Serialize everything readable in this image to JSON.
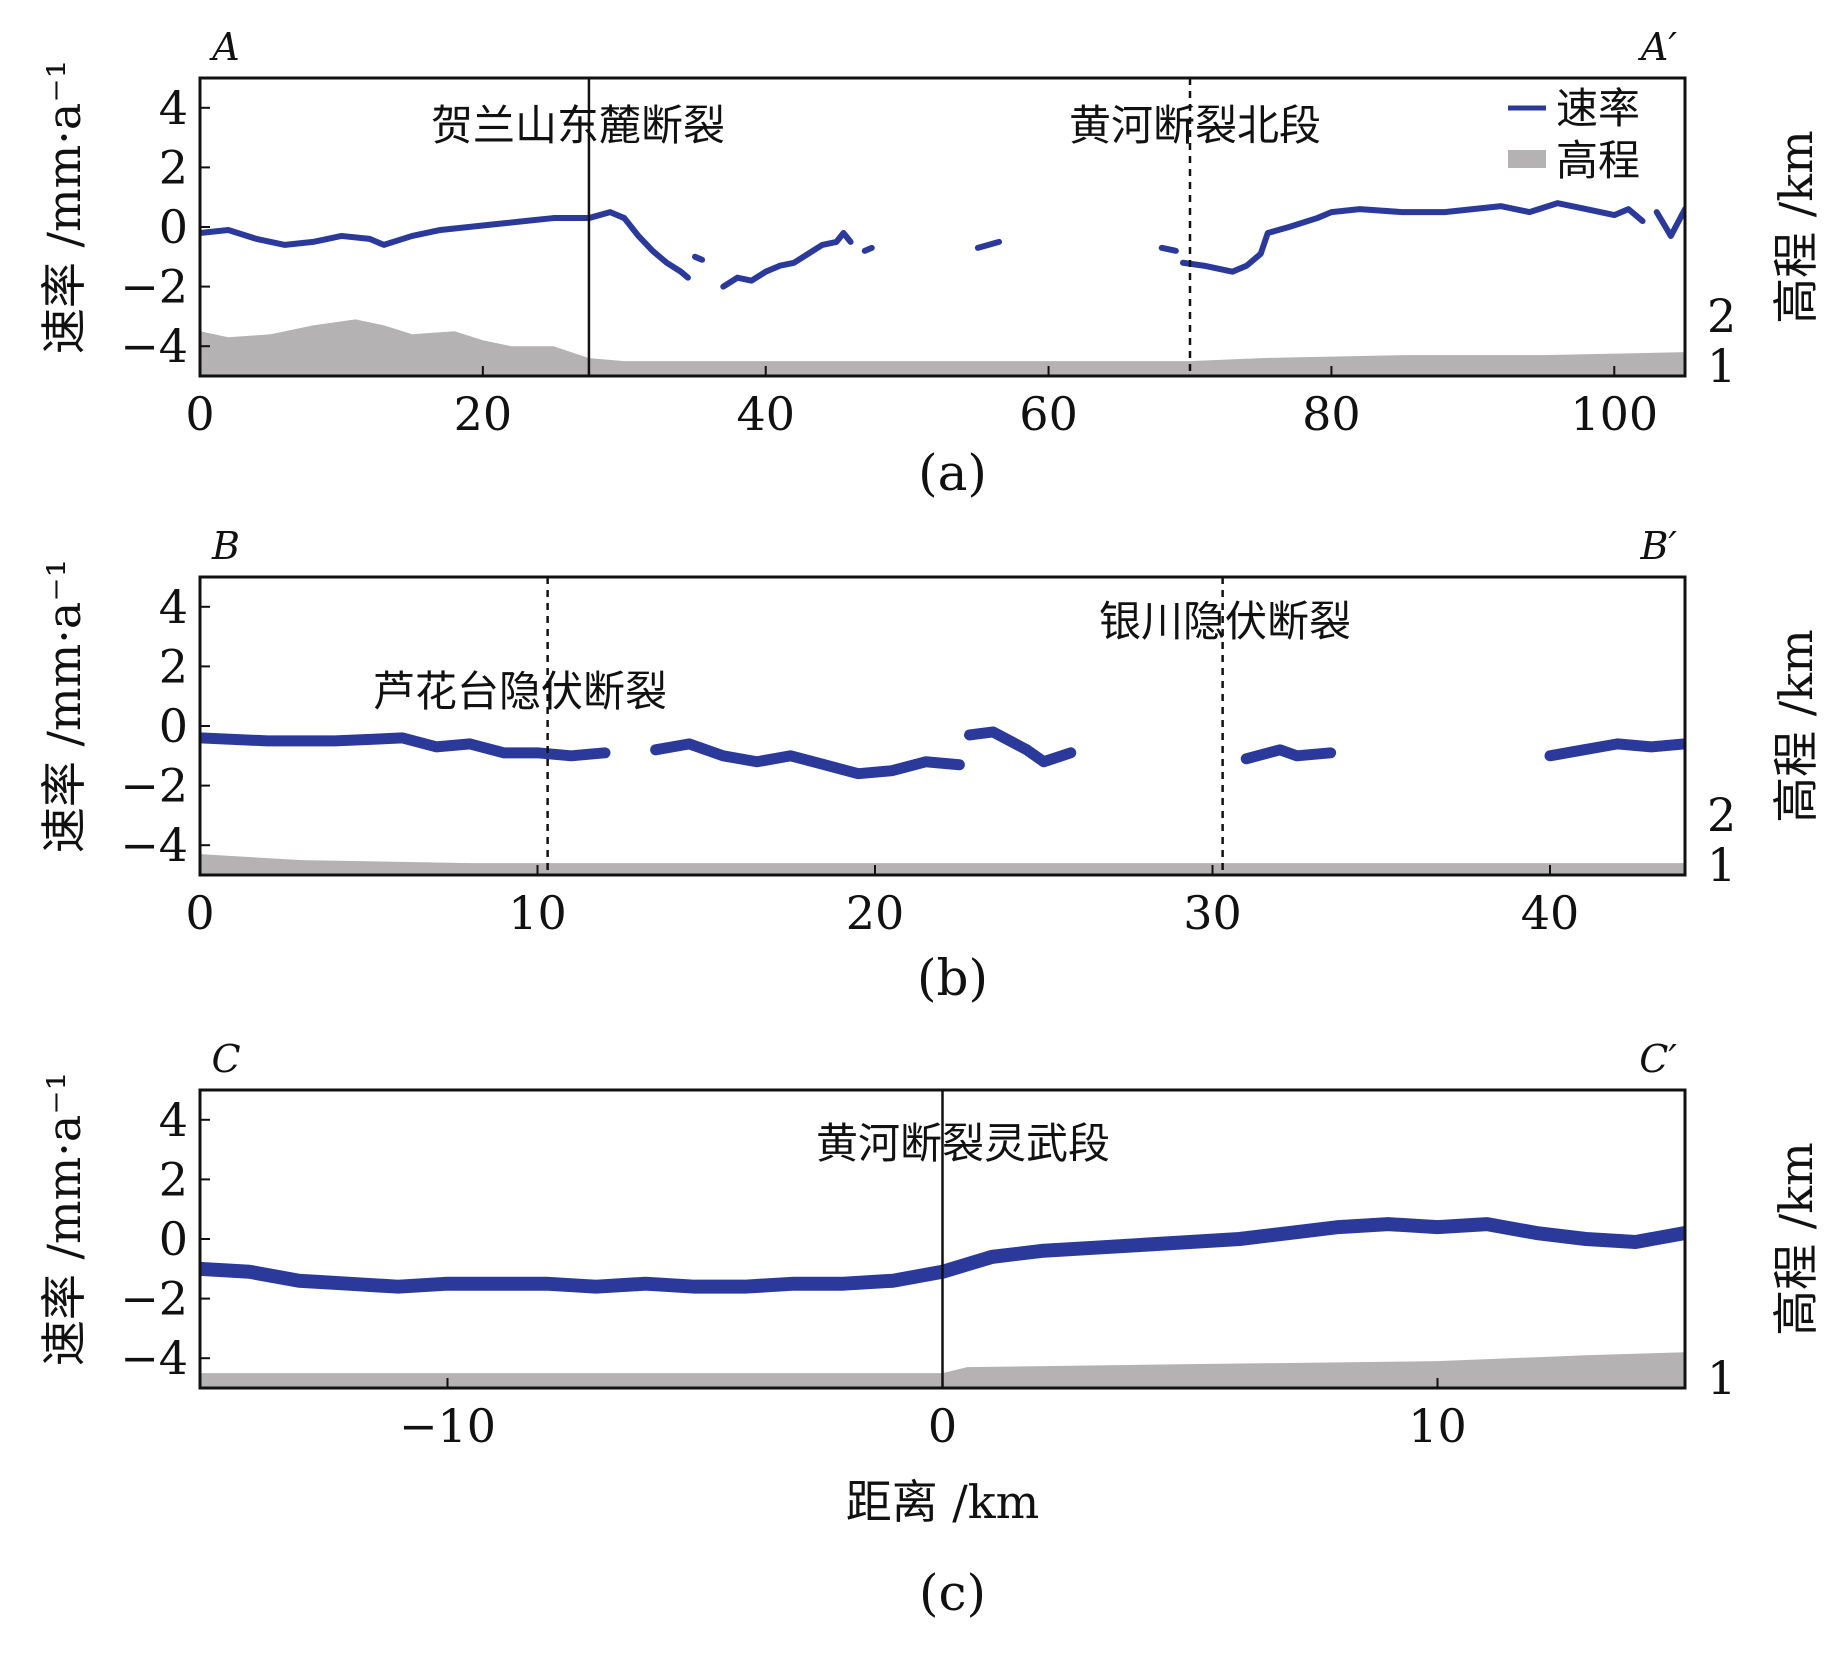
{
  "chart_data": [
    {
      "type": "line",
      "panel": "(a)",
      "corner_left": "A",
      "corner_right": "A′",
      "ylabel": "速率 /mm·a⁻¹",
      "y2label": "高程 /km",
      "xlim": [
        0,
        105
      ],
      "ylim": [
        -5,
        5
      ],
      "xticks": [
        0,
        20,
        40,
        60,
        80,
        100
      ],
      "yticks": [
        4,
        2,
        0,
        -2,
        -4
      ],
      "y2ticks": [
        2,
        1
      ],
      "legend": {
        "placement": "top-right",
        "entries": [
          {
            "label": "速率",
            "color": "#2b3a9a"
          },
          {
            "label": "高程",
            "color": "#b4b2b2"
          }
        ]
      },
      "faults": [
        {
          "x": 27.5,
          "label": "贺兰山东麓断裂",
          "style": "solid"
        },
        {
          "x": 70,
          "label": "黄河断裂北段",
          "style": "dashed"
        }
      ],
      "series": [
        {
          "name": "速率",
          "segments": [
            [
              [
                0,
                -0.2
              ],
              [
                2,
                -0.1
              ],
              [
                4,
                -0.4
              ],
              [
                6,
                -0.6
              ],
              [
                8,
                -0.5
              ],
              [
                10,
                -0.3
              ],
              [
                12,
                -0.4
              ],
              [
                13,
                -0.6
              ],
              [
                15,
                -0.3
              ],
              [
                17,
                -0.1
              ],
              [
                19,
                0.0
              ],
              [
                21,
                0.1
              ],
              [
                23,
                0.2
              ],
              [
                25,
                0.3
              ],
              [
                27.5,
                0.3
              ],
              [
                29,
                0.5
              ],
              [
                30,
                0.3
              ],
              [
                31,
                -0.3
              ],
              [
                32,
                -0.8
              ],
              [
                33,
                -1.2
              ],
              [
                34,
                -1.5
              ],
              [
                34.5,
                -1.7
              ]
            ],
            [
              [
                35,
                -1.0
              ],
              [
                35.5,
                -1.1
              ]
            ],
            [
              [
                37,
                -2.0
              ],
              [
                38,
                -1.7
              ],
              [
                39,
                -1.8
              ],
              [
                40,
                -1.5
              ],
              [
                41,
                -1.3
              ],
              [
                42,
                -1.2
              ],
              [
                43,
                -0.9
              ],
              [
                44,
                -0.6
              ],
              [
                45,
                -0.5
              ],
              [
                45.5,
                -0.2
              ],
              [
                46,
                -0.5
              ]
            ],
            [
              [
                47,
                -0.8
              ],
              [
                47.5,
                -0.7
              ]
            ],
            [
              [
                55,
                -0.7
              ],
              [
                56.5,
                -0.5
              ]
            ],
            [
              [
                68,
                -0.7
              ],
              [
                69,
                -0.8
              ]
            ],
            [
              [
                69.5,
                -1.2
              ],
              [
                71,
                -1.3
              ],
              [
                72,
                -1.4
              ],
              [
                73,
                -1.5
              ],
              [
                74,
                -1.3
              ],
              [
                75,
                -0.9
              ],
              [
                75.5,
                -0.2
              ],
              [
                77,
                0.0
              ],
              [
                79,
                0.3
              ],
              [
                80,
                0.5
              ],
              [
                82,
                0.6
              ],
              [
                85,
                0.5
              ],
              [
                88,
                0.5
              ],
              [
                90,
                0.6
              ],
              [
                92,
                0.7
              ],
              [
                94,
                0.5
              ],
              [
                96,
                0.8
              ],
              [
                98,
                0.6
              ],
              [
                100,
                0.4
              ],
              [
                101,
                0.6
              ],
              [
                102,
                0.2
              ]
            ],
            [
              [
                103,
                0.5
              ],
              [
                104,
                -0.3
              ],
              [
                105,
                0.6
              ]
            ]
          ]
        },
        {
          "name": "高程",
          "values": [
            [
              0,
              -3.5
            ],
            [
              2,
              -3.7
            ],
            [
              5,
              -3.6
            ],
            [
              8,
              -3.3
            ],
            [
              11,
              -3.1
            ],
            [
              13,
              -3.3
            ],
            [
              15,
              -3.6
            ],
            [
              18,
              -3.5
            ],
            [
              20,
              -3.8
            ],
            [
              22,
              -4.0
            ],
            [
              25,
              -4.0
            ],
            [
              27.5,
              -4.4
            ],
            [
              30,
              -4.5
            ],
            [
              40,
              -4.5
            ],
            [
              60,
              -4.5
            ],
            [
              70,
              -4.5
            ],
            [
              75,
              -4.4
            ],
            [
              85,
              -4.3
            ],
            [
              95,
              -4.3
            ],
            [
              105,
              -4.2
            ]
          ]
        }
      ],
      "caption": "(a)"
    },
    {
      "type": "line",
      "panel": "(b)",
      "corner_left": "B",
      "corner_right": "B′",
      "ylabel": "速率 /mm·a⁻¹",
      "y2label": "高程 /km",
      "xlim": [
        0,
        44
      ],
      "ylim": [
        -5,
        5
      ],
      "xticks": [
        0,
        10,
        20,
        30,
        40
      ],
      "yticks": [
        4,
        2,
        0,
        -2,
        -4
      ],
      "y2ticks": [
        2,
        1
      ],
      "faults": [
        {
          "x": 10.3,
          "label": "芦花台隐伏断裂",
          "style": "dashed"
        },
        {
          "x": 30.3,
          "label": "银川隐伏断裂",
          "style": "dashed"
        }
      ],
      "series": [
        {
          "name": "速率",
          "segments": [
            [
              [
                0,
                -0.4
              ],
              [
                2,
                -0.5
              ],
              [
                4,
                -0.5
              ],
              [
                6,
                -0.4
              ],
              [
                7,
                -0.7
              ],
              [
                8,
                -0.6
              ],
              [
                9,
                -0.9
              ],
              [
                10,
                -0.9
              ],
              [
                11,
                -1.0
              ],
              [
                12,
                -0.9
              ]
            ],
            [
              [
                13.5,
                -0.8
              ],
              [
                14.5,
                -0.6
              ],
              [
                15.5,
                -1.0
              ],
              [
                16.5,
                -1.2
              ],
              [
                17.5,
                -1.0
              ],
              [
                18.5,
                -1.3
              ],
              [
                19.5,
                -1.6
              ],
              [
                20.5,
                -1.5
              ],
              [
                21.5,
                -1.2
              ],
              [
                22.5,
                -1.3
              ]
            ],
            [
              [
                22.8,
                -0.3
              ],
              [
                23.5,
                -0.2
              ],
              [
                24.5,
                -0.8
              ],
              [
                25,
                -1.2
              ],
              [
                25.8,
                -0.9
              ]
            ],
            [
              [
                31,
                -1.1
              ],
              [
                32,
                -0.8
              ],
              [
                32.5,
                -1.0
              ],
              [
                33.5,
                -0.9
              ]
            ],
            [
              [
                40,
                -1.0
              ],
              [
                41,
                -0.8
              ],
              [
                42,
                -0.6
              ],
              [
                43,
                -0.7
              ],
              [
                44,
                -0.6
              ]
            ]
          ]
        },
        {
          "name": "高程",
          "values": [
            [
              0,
              -4.3
            ],
            [
              3,
              -4.5
            ],
            [
              8,
              -4.6
            ],
            [
              44,
              -4.6
            ]
          ]
        }
      ],
      "caption": "(b)"
    },
    {
      "type": "line",
      "panel": "(c)",
      "corner_left": "C",
      "corner_right": "C′",
      "ylabel": "速率 /mm·a⁻¹",
      "y2label": "高程 /km",
      "xlabel": "距离 /km",
      "xlim": [
        -15,
        15
      ],
      "ylim": [
        -5,
        5
      ],
      "xticks": [
        -10,
        0,
        10
      ],
      "yticks": [
        4,
        2,
        0,
        -2,
        -4
      ],
      "y2ticks": [
        1
      ],
      "faults": [
        {
          "x": 0,
          "label": "黄河断裂灵武段",
          "style": "solid"
        }
      ],
      "series": [
        {
          "name": "速率",
          "segments": [
            [
              [
                -15,
                -1.0
              ],
              [
                -14,
                -1.1
              ],
              [
                -13,
                -1.4
              ],
              [
                -12,
                -1.5
              ],
              [
                -11,
                -1.6
              ],
              [
                -10,
                -1.5
              ],
              [
                -9,
                -1.5
              ],
              [
                -8,
                -1.5
              ],
              [
                -7,
                -1.6
              ],
              [
                -6,
                -1.5
              ],
              [
                -5,
                -1.6
              ],
              [
                -4,
                -1.6
              ],
              [
                -3,
                -1.5
              ],
              [
                -2,
                -1.5
              ],
              [
                -1,
                -1.4
              ],
              [
                0,
                -1.1
              ],
              [
                1,
                -0.6
              ],
              [
                2,
                -0.4
              ],
              [
                3,
                -0.3
              ],
              [
                4,
                -0.2
              ],
              [
                5,
                -0.1
              ],
              [
                6,
                0.0
              ],
              [
                7,
                0.2
              ],
              [
                8,
                0.4
              ],
              [
                9,
                0.5
              ],
              [
                10,
                0.4
              ],
              [
                11,
                0.5
              ],
              [
                12,
                0.2
              ],
              [
                13,
                0.0
              ],
              [
                14,
                -0.1
              ],
              [
                15,
                0.2
              ]
            ]
          ]
        },
        {
          "name": "高程",
          "values": [
            [
              -15,
              -4.5
            ],
            [
              0,
              -4.5
            ],
            [
              0.5,
              -4.3
            ],
            [
              5,
              -4.2
            ],
            [
              10,
              -4.1
            ],
            [
              13,
              -3.9
            ],
            [
              15,
              -3.8
            ]
          ]
        }
      ],
      "caption": "(c)"
    }
  ]
}
